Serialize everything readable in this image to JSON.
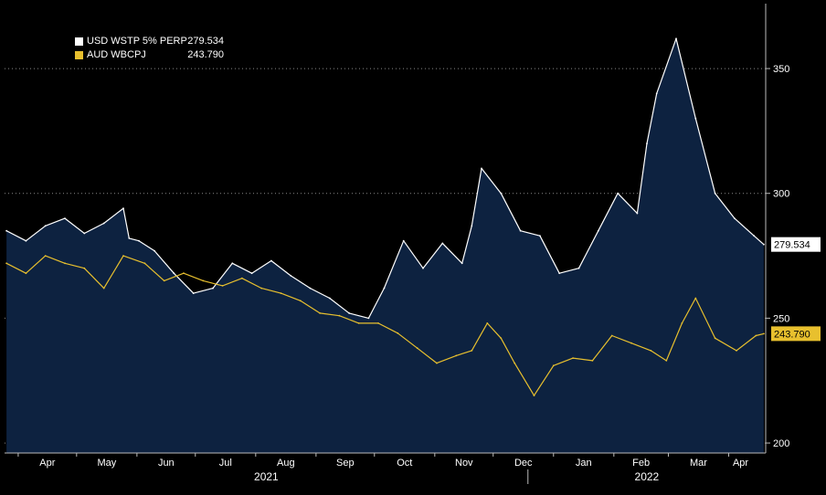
{
  "chart_data": {
    "type": "line",
    "title": "",
    "xlabel": "",
    "ylabel": "",
    "ylim": [
      196,
      376
    ],
    "yticks": [
      200,
      250,
      300,
      350
    ],
    "grid": "horizontal dotted",
    "legend": "top-left",
    "x_ticks": [
      "Apr",
      "May",
      "Jun",
      "Jul",
      "Aug",
      "Sep",
      "Oct",
      "Nov",
      "Dec",
      "Jan",
      "Feb",
      "Mar",
      "Apr"
    ],
    "x_years": [
      "2021",
      "2022"
    ],
    "x_range": [
      "2021-03-25",
      "2022-04-20"
    ],
    "series": [
      {
        "name": "USD WSTP 5% PERP",
        "color": "#ffffff",
        "fill": "#0d2240",
        "last": "279.534",
        "x": [
          "2021-03-26",
          "2021-04-05",
          "2021-04-15",
          "2021-04-25",
          "2021-05-05",
          "2021-05-15",
          "2021-05-25",
          "2021-05-28",
          "2021-06-02",
          "2021-06-10",
          "2021-06-20",
          "2021-06-30",
          "2021-07-10",
          "2021-07-20",
          "2021-07-30",
          "2021-08-09",
          "2021-08-19",
          "2021-08-29",
          "2021-09-08",
          "2021-09-18",
          "2021-09-28",
          "2021-10-06",
          "2021-10-16",
          "2021-10-26",
          "2021-11-05",
          "2021-11-15",
          "2021-11-20",
          "2021-11-25",
          "2021-12-05",
          "2021-12-15",
          "2021-12-25",
          "2022-01-04",
          "2022-01-14",
          "2022-01-24",
          "2022-02-03",
          "2022-02-13",
          "2022-02-18",
          "2022-02-23",
          "2022-03-05",
          "2022-03-15",
          "2022-03-25",
          "2022-04-04",
          "2022-04-14",
          "2022-04-19"
        ],
        "y": [
          285,
          281,
          287,
          290,
          284,
          288,
          294,
          282,
          281,
          277,
          268,
          260,
          262,
          272,
          268,
          273,
          267,
          262,
          258,
          252,
          250,
          262,
          281,
          270,
          280,
          272,
          287,
          310,
          300,
          285,
          283,
          268,
          270,
          285,
          300,
          292,
          320,
          340,
          362,
          330,
          300,
          290,
          283,
          279.534
        ]
      },
      {
        "name": "AUD WBCPJ",
        "color": "#e8c02e",
        "fill": "none",
        "last": "243.790",
        "x": [
          "2021-03-26",
          "2021-04-05",
          "2021-04-15",
          "2021-04-25",
          "2021-05-05",
          "2021-05-15",
          "2021-05-25",
          "2021-06-05",
          "2021-06-15",
          "2021-06-25",
          "2021-07-05",
          "2021-07-15",
          "2021-07-25",
          "2021-08-04",
          "2021-08-14",
          "2021-08-24",
          "2021-09-03",
          "2021-09-13",
          "2021-09-23",
          "2021-10-03",
          "2021-10-13",
          "2021-10-23",
          "2021-11-02",
          "2021-11-12",
          "2021-11-20",
          "2021-11-28",
          "2021-12-05",
          "2021-12-12",
          "2021-12-22",
          "2022-01-01",
          "2022-01-11",
          "2022-01-21",
          "2022-01-31",
          "2022-02-10",
          "2022-02-20",
          "2022-02-28",
          "2022-03-08",
          "2022-03-15",
          "2022-03-25",
          "2022-04-05",
          "2022-04-15",
          "2022-04-19"
        ],
        "y": [
          272,
          268,
          275,
          272,
          270,
          262,
          275,
          272,
          265,
          268,
          265,
          263,
          266,
          262,
          260,
          257,
          252,
          251,
          248,
          248,
          244,
          238,
          232,
          235,
          237,
          248,
          242,
          232,
          219,
          231,
          234,
          233,
          243,
          240,
          237,
          233,
          248,
          258,
          242,
          237,
          243,
          243.79
        ]
      }
    ]
  }
}
